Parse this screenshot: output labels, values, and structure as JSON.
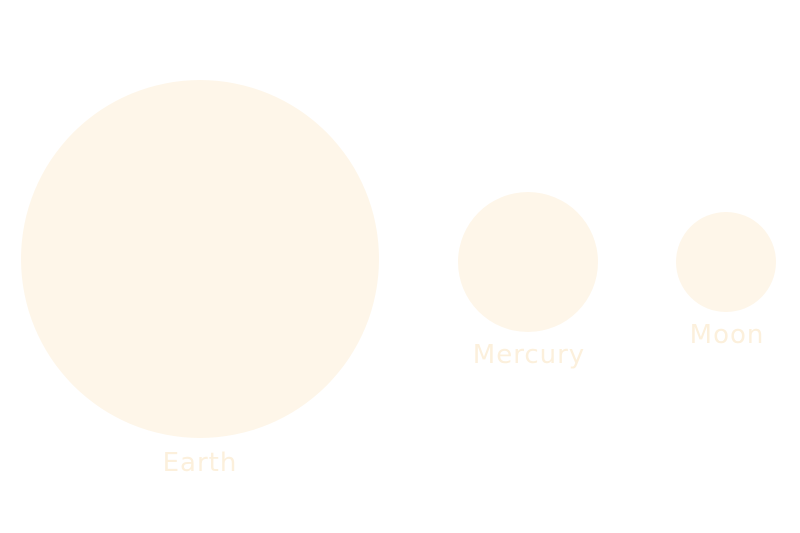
{
  "theme": {
    "fill_color": "#fef6e9",
    "label_color": "#fcf0dc",
    "background": "#ffffff"
  },
  "bodies": [
    {
      "name": "Earth"
    },
    {
      "name": "Mercury"
    },
    {
      "name": "Moon"
    }
  ]
}
